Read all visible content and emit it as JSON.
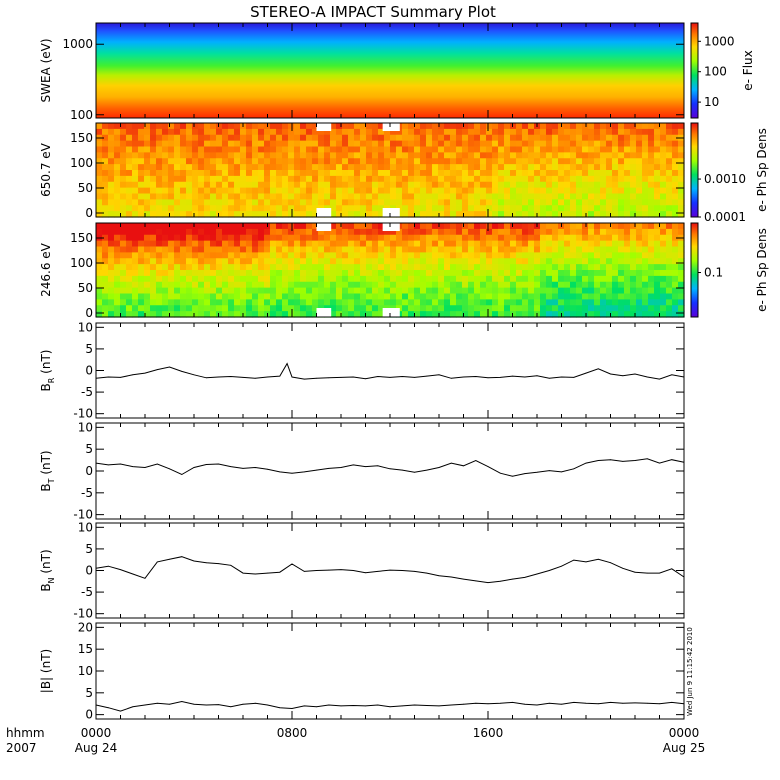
{
  "title": "STEREO-A IMPACT Summary Plot",
  "footer": {
    "x_label_line1": "hhmm",
    "x_label_line2": "2007",
    "ticks": [
      {
        "hour": 0,
        "time": "0000",
        "date": "Aug 24"
      },
      {
        "hour": 8,
        "time": "0800",
        "date": ""
      },
      {
        "hour": 16,
        "time": "1600",
        "date": ""
      },
      {
        "hour": 24,
        "time": "0000",
        "date": "Aug 25"
      }
    ],
    "timestamp": "Wed Jun 9 11:15:42 2010"
  },
  "chart_data": [
    {
      "type": "heatmap",
      "ylabel": "SWEA (eV)",
      "yscale": "log",
      "ylim": [
        90,
        2000
      ],
      "yticks": [
        {
          "v": 100,
          "label": "100"
        },
        {
          "v": 1000,
          "label": "1000"
        }
      ],
      "colorbar": {
        "label": "e- Flux",
        "scale": "log",
        "range": [
          3,
          4000
        ],
        "ticks": [
          {
            "v": 10,
            "label": "10"
          },
          {
            "v": 100,
            "label": "100"
          },
          {
            "v": 1000,
            "label": "1000"
          }
        ]
      },
      "description_levels": "high flux (red) at low energy, decreasing to blue near 2000 eV"
    },
    {
      "type": "heatmap",
      "ylabel": "650.7 eV",
      "ylim": [
        -8,
        180
      ],
      "yticks": [
        {
          "v": 0,
          "label": "0"
        },
        {
          "v": 50,
          "label": "50"
        },
        {
          "v": 100,
          "label": "100"
        },
        {
          "v": 150,
          "label": "150"
        }
      ],
      "colorbar": {
        "label": "e- Ph Sp Dens",
        "scale": "log",
        "range": [
          0.0001,
          0.03
        ],
        "ticks": [
          {
            "v": 0.0001,
            "label": "0.0001"
          },
          {
            "v": 0.001,
            "label": "0.0010"
          }
        ]
      }
    },
    {
      "type": "heatmap",
      "ylabel": "246.6 eV",
      "ylim": [
        -8,
        180
      ],
      "yticks": [
        {
          "v": 0,
          "label": "0"
        },
        {
          "v": 50,
          "label": "50"
        },
        {
          "v": 100,
          "label": "100"
        },
        {
          "v": 150,
          "label": "150"
        }
      ],
      "colorbar": {
        "label": "e- Ph Sp Dens",
        "scale": "log",
        "range": [
          0.02,
          0.6
        ],
        "ticks": [
          {
            "v": 0.1,
            "label": "0.1"
          }
        ]
      }
    },
    {
      "type": "line",
      "ylabel": "B",
      "ylabel_sub": "R",
      "ylabel_unit": " (nT)",
      "ylim": [
        -11,
        11
      ],
      "yticks": [
        {
          "v": -10,
          "label": "-10"
        },
        {
          "v": -5,
          "label": "-5"
        },
        {
          "v": 0,
          "label": "0"
        },
        {
          "v": 5,
          "label": "5"
        },
        {
          "v": 10,
          "label": "10"
        }
      ],
      "x": [
        0,
        0.5,
        1,
        1.5,
        2,
        2.5,
        3,
        3.5,
        4,
        4.5,
        5,
        5.5,
        6,
        6.5,
        7,
        7.5,
        7.8,
        8,
        8.5,
        9,
        9.5,
        10,
        10.5,
        11,
        11.5,
        12,
        12.5,
        13,
        13.5,
        14,
        14.5,
        15,
        15.5,
        16,
        16.5,
        17,
        17.5,
        18,
        18.5,
        19,
        19.5,
        20,
        20.5,
        21,
        21.5,
        22,
        22.5,
        23,
        23.5,
        24
      ],
      "y": [
        -1.8,
        -1.5,
        -1.6,
        -1.0,
        -0.6,
        0.2,
        0.8,
        -0.2,
        -1.0,
        -1.7,
        -1.5,
        -1.4,
        -1.6,
        -1.8,
        -1.5,
        -1.3,
        1.6,
        -1.5,
        -2.0,
        -1.8,
        -1.7,
        -1.6,
        -1.5,
        -1.9,
        -1.4,
        -1.6,
        -1.4,
        -1.6,
        -1.3,
        -1.0,
        -1.8,
        -1.5,
        -1.4,
        -1.7,
        -1.6,
        -1.3,
        -1.5,
        -1.2,
        -1.8,
        -1.5,
        -1.6,
        -0.6,
        0.4,
        -0.8,
        -1.2,
        -0.8,
        -1.5,
        -2.0,
        -1.0,
        -1.5
      ]
    },
    {
      "type": "line",
      "ylabel": "B",
      "ylabel_sub": "T",
      "ylabel_unit": " (nT)",
      "ylim": [
        -11,
        11
      ],
      "yticks": [
        {
          "v": -10,
          "label": "-10"
        },
        {
          "v": -5,
          "label": "-5"
        },
        {
          "v": 0,
          "label": "0"
        },
        {
          "v": 5,
          "label": "5"
        },
        {
          "v": 10,
          "label": "10"
        }
      ],
      "x": [
        0,
        0.5,
        1,
        1.5,
        2,
        2.5,
        3,
        3.5,
        4,
        4.5,
        5,
        5.5,
        6,
        6.5,
        7,
        7.5,
        8,
        8.5,
        9,
        9.5,
        10,
        10.5,
        11,
        11.5,
        12,
        12.5,
        13,
        13.5,
        14,
        14.5,
        15,
        15.5,
        16,
        16.5,
        17,
        17.5,
        18,
        18.5,
        19,
        19.5,
        20,
        20.5,
        21,
        21.5,
        22,
        22.5,
        23,
        23.5,
        24
      ],
      "y": [
        1.8,
        1.4,
        1.6,
        1.0,
        0.8,
        1.6,
        0.5,
        -0.8,
        0.8,
        1.5,
        1.6,
        1.0,
        0.6,
        0.8,
        0.4,
        -0.2,
        -0.5,
        -0.2,
        0.2,
        0.6,
        0.8,
        1.4,
        1.0,
        1.2,
        0.5,
        0.2,
        -0.3,
        0.2,
        0.8,
        1.8,
        1.2,
        2.4,
        1.0,
        -0.5,
        -1.2,
        -0.6,
        -0.3,
        0.1,
        -0.2,
        0.5,
        1.8,
        2.4,
        2.6,
        2.2,
        2.4,
        2.8,
        1.8,
        2.6,
        2.0
      ]
    },
    {
      "type": "line",
      "ylabel": "B",
      "ylabel_sub": "N",
      "ylabel_unit": " (nT)",
      "ylim": [
        -11,
        11
      ],
      "yticks": [
        {
          "v": -10,
          "label": "-10"
        },
        {
          "v": -5,
          "label": "-5"
        },
        {
          "v": 0,
          "label": "0"
        },
        {
          "v": 5,
          "label": "5"
        },
        {
          "v": 10,
          "label": "10"
        }
      ],
      "x": [
        0,
        0.5,
        1,
        1.5,
        2,
        2.5,
        3,
        3.5,
        4,
        4.5,
        5,
        5.5,
        6,
        6.5,
        7,
        7.5,
        8,
        8.5,
        9,
        9.5,
        10,
        10.5,
        11,
        11.5,
        12,
        12.5,
        13,
        13.5,
        14,
        14.5,
        15,
        15.5,
        16,
        16.5,
        17,
        17.5,
        18,
        18.5,
        19,
        19.5,
        20,
        20.5,
        21,
        21.5,
        22,
        22.5,
        23,
        23.5,
        24
      ],
      "y": [
        0.5,
        1.0,
        0.2,
        -0.8,
        -1.8,
        2.0,
        2.6,
        3.2,
        2.2,
        1.8,
        1.6,
        1.2,
        -0.6,
        -0.8,
        -0.6,
        -0.4,
        1.5,
        -0.2,
        0.0,
        0.1,
        0.2,
        0.0,
        -0.5,
        -0.2,
        0.1,
        0.0,
        -0.2,
        -0.6,
        -1.2,
        -1.5,
        -2.0,
        -2.4,
        -2.8,
        -2.5,
        -2.0,
        -1.6,
        -0.8,
        0.0,
        1.0,
        2.4,
        2.0,
        2.6,
        1.8,
        0.5,
        -0.4,
        -0.6,
        -0.6,
        0.4,
        -1.5
      ]
    },
    {
      "type": "line",
      "ylabel": "|B| (nT)",
      "ylim": [
        -1,
        21
      ],
      "yticks": [
        {
          "v": 0,
          "label": "0"
        },
        {
          "v": 5,
          "label": "5"
        },
        {
          "v": 10,
          "label": "10"
        },
        {
          "v": 15,
          "label": "15"
        },
        {
          "v": 20,
          "label": "20"
        }
      ],
      "x": [
        0,
        0.5,
        1,
        1.5,
        2,
        2.5,
        3,
        3.5,
        4,
        4.5,
        5,
        5.5,
        6,
        6.5,
        7,
        7.5,
        8,
        8.5,
        9,
        9.5,
        10,
        10.5,
        11,
        11.5,
        12,
        12.5,
        13,
        13.5,
        14,
        14.5,
        15,
        15.5,
        16,
        16.5,
        17,
        17.5,
        18,
        18.5,
        19,
        19.5,
        20,
        20.5,
        21,
        21.5,
        22,
        22.5,
        23,
        23.5,
        24
      ],
      "y": [
        2.2,
        1.6,
        0.8,
        1.8,
        2.2,
        2.6,
        2.4,
        3.0,
        2.4,
        2.2,
        2.3,
        1.8,
        2.4,
        2.6,
        2.2,
        1.6,
        1.4,
        2.0,
        1.8,
        2.2,
        2.0,
        2.1,
        2.0,
        2.2,
        1.8,
        2.0,
        2.2,
        2.1,
        2.0,
        2.2,
        2.4,
        2.6,
        2.5,
        2.6,
        2.8,
        2.4,
        2.2,
        2.6,
        2.4,
        2.8,
        2.6,
        2.5,
        2.8,
        2.6,
        2.7,
        2.6,
        2.5,
        2.8,
        2.5
      ]
    }
  ]
}
